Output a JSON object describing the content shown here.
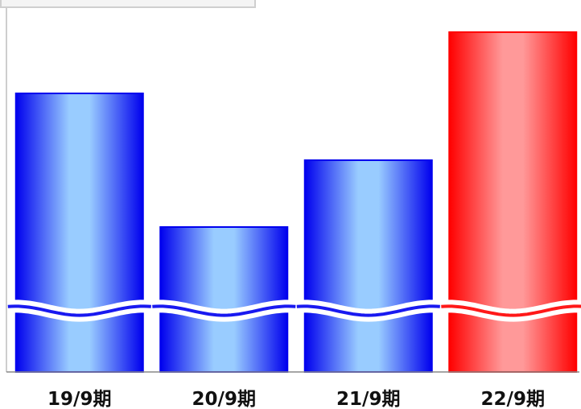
{
  "chart_data": {
    "type": "bar",
    "title": "",
    "xlabel": "",
    "ylabel": "",
    "categories": [
      "19/9期",
      "20/9期",
      "21/9期",
      "22/9期"
    ],
    "values": [
      100,
      52,
      76,
      122
    ],
    "highlight_index": 3,
    "axis_break": true,
    "grid": false,
    "legend": "none"
  },
  "colors": {
    "normal_dark": "#0000ee",
    "normal_light": "#99ccff",
    "highlight_dark": "#ff0000",
    "highlight_light": "#ff9999"
  }
}
